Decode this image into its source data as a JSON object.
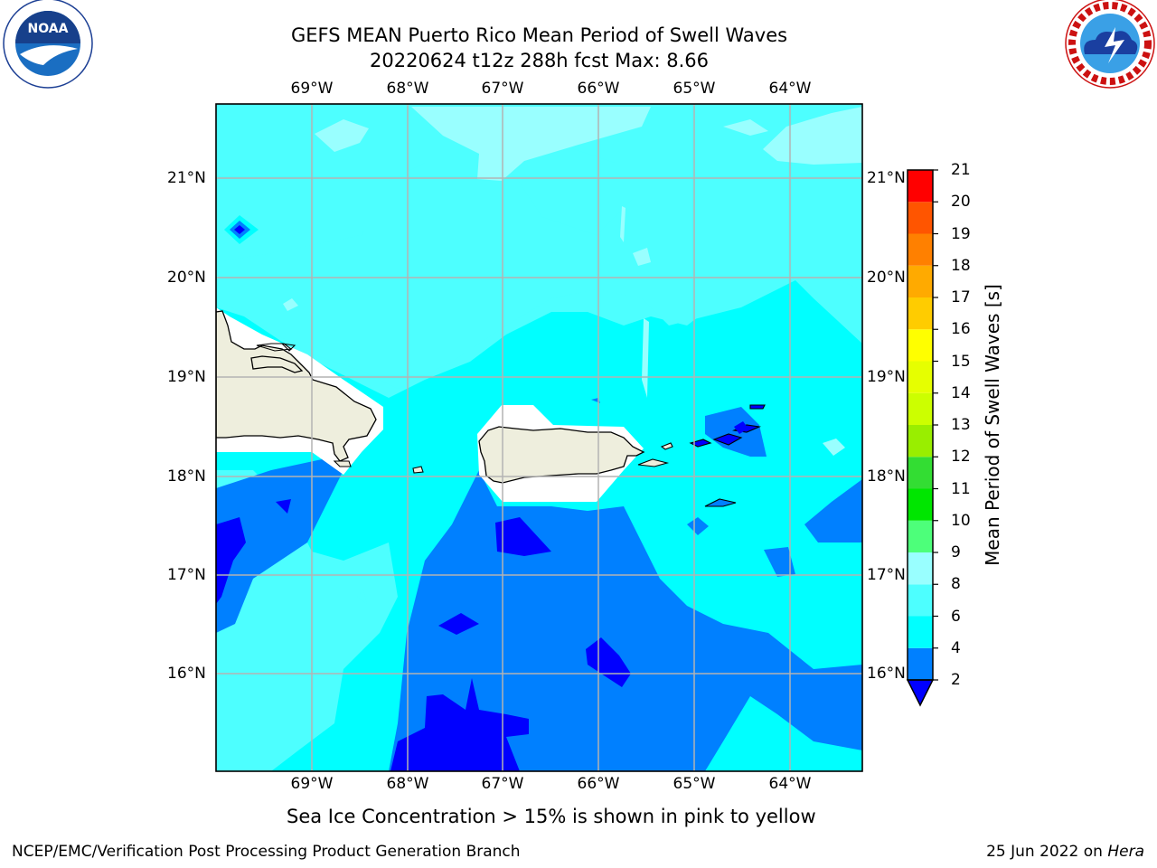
{
  "header": {
    "title_line1": "GEFS MEAN Puerto Rico Mean Period of Swell Waves",
    "title_line2": "20220624 t12z 288h fcst   Max: 8.66"
  },
  "map": {
    "longitude_labels": [
      "69°W",
      "68°W",
      "67°W",
      "66°W",
      "65°W",
      "64°W"
    ],
    "latitude_labels": [
      "21°N",
      "20°N",
      "19°N",
      "18°N",
      "17°N",
      "16°N"
    ],
    "lon_range": [
      -70,
      -63.3
    ],
    "lat_range": [
      15,
      21.7
    ],
    "grid": true,
    "colors": {
      "ocean_2_4": "#0080ff",
      "ocean_below_2": "#0000ff",
      "ocean_4_6": "#00ffff",
      "ocean_6_8": "#4dffff",
      "ocean_8_9": "#99ffff",
      "land": "#eeeedd"
    }
  },
  "colorbar": {
    "label": "Mean Period of Swell Waves [s]",
    "ticks": [
      "2",
      "4",
      "6",
      "8",
      "9",
      "10",
      "11",
      "12",
      "13",
      "14",
      "15",
      "16",
      "17",
      "18",
      "19",
      "20",
      "21"
    ],
    "bands": [
      {
        "from": 2,
        "to": 4,
        "color": "#0080ff"
      },
      {
        "from": 4,
        "to": 6,
        "color": "#00ffff"
      },
      {
        "from": 6,
        "to": 8,
        "color": "#4dffff"
      },
      {
        "from": 8,
        "to": 9,
        "color": "#99ffff"
      },
      {
        "from": 9,
        "to": 10,
        "color": "#4dff7a"
      },
      {
        "from": 10,
        "to": 11,
        "color": "#00e600"
      },
      {
        "from": 11,
        "to": 12,
        "color": "#33dd33"
      },
      {
        "from": 12,
        "to": 13,
        "color": "#99ee00"
      },
      {
        "from": 13,
        "to": 14,
        "color": "#ccff00"
      },
      {
        "from": 14,
        "to": 15,
        "color": "#e6ff00"
      },
      {
        "from": 15,
        "to": 16,
        "color": "#ffff00"
      },
      {
        "from": 16,
        "to": 17,
        "color": "#ffcc00"
      },
      {
        "from": 17,
        "to": 18,
        "color": "#ffaa00"
      },
      {
        "from": 18,
        "to": 19,
        "color": "#ff8000"
      },
      {
        "from": 19,
        "to": 20,
        "color": "#ff5500"
      },
      {
        "from": 20,
        "to": 21,
        "color": "#ff0000"
      }
    ],
    "under_color": "#0000ff"
  },
  "footnote": "Sea Ice Concentration > 15% is shown in pink to yellow",
  "footer": {
    "left": "NCEP/EMC/Verification Post Processing Product Generation Branch",
    "date": "25 Jun 2022 on",
    "machine": "Hera"
  },
  "logos": {
    "left": {
      "name": "noaa-logo",
      "text": "NOAA"
    },
    "right": {
      "name": "nws-logo",
      "text": "NATIONAL WEATHER SERVICE"
    }
  }
}
